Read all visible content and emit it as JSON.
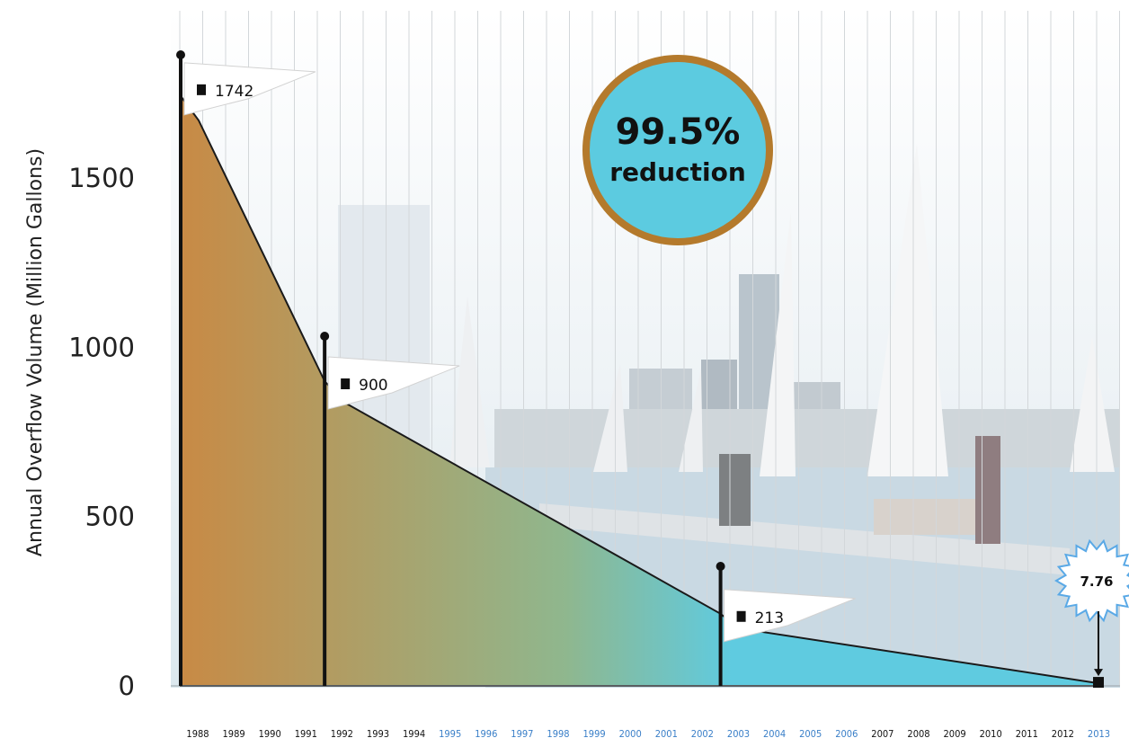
{
  "chart_data": {
    "type": "area",
    "ylabel": "Annual Overflow Volume (Million Gallons)",
    "xlabel": "",
    "ylim": [
      0,
      2000
    ],
    "y_ticks": [
      "0",
      "500",
      "1000",
      "1500"
    ],
    "x_years": [
      "1988",
      "1989",
      "1990",
      "1991",
      "1992",
      "1993",
      "1994",
      "1995",
      "1996",
      "1997",
      "1998",
      "1999",
      "2000",
      "2001",
      "2002",
      "2003",
      "2004",
      "2005",
      "2006",
      "2007",
      "2008",
      "2009",
      "2010",
      "2011",
      "2012",
      "2013"
    ],
    "highlight_years": [
      "1995",
      "1996",
      "1997",
      "1998",
      "1999",
      "2000",
      "2001",
      "2002",
      "2003",
      "2004",
      "2005",
      "2006",
      "2013"
    ],
    "series": [
      {
        "x": [
          1987.5,
          1988,
          1991.5,
          1992,
          2002.5,
          2003,
          2013
        ],
        "y": [
          1742,
          1670,
          900,
          840,
          213,
          170,
          7.76
        ]
      }
    ],
    "milestones": [
      {
        "year": 1987.5,
        "value": 1742,
        "label": "1742"
      },
      {
        "year": 1991.5,
        "value": 900,
        "label": "900"
      },
      {
        "year": 2002.5,
        "value": 213,
        "label": "213"
      }
    ],
    "final_value": {
      "year": 2013,
      "value": 7.76,
      "label": "7.76"
    },
    "annotation": {
      "main": "99.5%",
      "sub": "reduction"
    },
    "grid": true,
    "colors": {
      "area_start": "#c88a45",
      "area_mid": "#8fb78e",
      "area_end": "#5fcbe0",
      "badge_fill": "#5ccbe0",
      "badge_border": "#b47a2c",
      "burst_stroke": "#5aa9e6",
      "highlight_year": "#3a7fc8"
    }
  }
}
